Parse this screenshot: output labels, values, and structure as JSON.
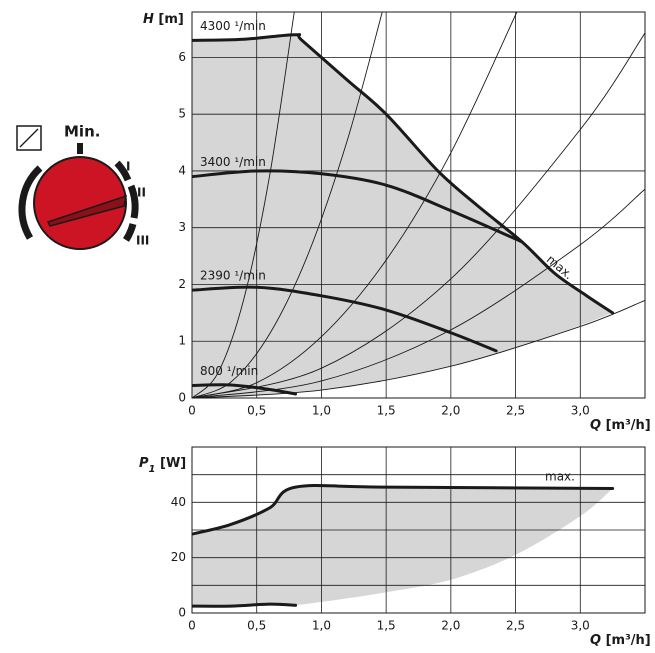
{
  "dial": {
    "min_label": "Min.",
    "positions": [
      "I",
      "II",
      "III"
    ]
  },
  "chart_data": [
    {
      "type": "line",
      "y_symbol": "H",
      "y_unit": "[m]",
      "x_symbol": "Q",
      "x_unit": "[m³/h]",
      "xlim": [
        0,
        3.5
      ],
      "xticks": [
        0,
        {
          "value": 0.5,
          "label": "0,5"
        },
        {
          "value": 1.0,
          "label": "1,0"
        },
        {
          "value": 1.5,
          "label": "1,5"
        },
        {
          "value": 2.0,
          "label": "2,0"
        },
        {
          "value": 2.5,
          "label": "2,5"
        },
        {
          "value": 3.0,
          "label": "3,0"
        }
      ],
      "ylim": [
        0,
        6.8
      ],
      "yticks": [
        0,
        1,
        2,
        3,
        4,
        5,
        6
      ],
      "grid": true,
      "shade_color": "#d6d6d6",
      "series": [
        {
          "name": "4300 ¹/min",
          "color": "#1a1a1a",
          "x": [
            0,
            0.4,
            0.8,
            0.85,
            1.2,
            1.5,
            1.9,
            2.2,
            2.55,
            2.8,
            3.05,
            3.25
          ],
          "values": [
            6.3,
            6.32,
            6.4,
            6.3,
            5.6,
            5.0,
            4.0,
            3.4,
            2.75,
            2.2,
            1.8,
            1.5
          ]
        },
        {
          "name": "3400 ¹/min",
          "color": "#1a1a1a",
          "x": [
            0,
            0.5,
            1.0,
            1.5,
            2.0,
            2.55
          ],
          "values": [
            3.9,
            4.0,
            3.95,
            3.75,
            3.3,
            2.75
          ]
        },
        {
          "name": "2390 ¹/min",
          "color": "#1a1a1a",
          "x": [
            0,
            0.5,
            1.0,
            1.5,
            2.0,
            2.35
          ],
          "values": [
            1.9,
            1.95,
            1.8,
            1.55,
            1.15,
            0.83
          ]
        },
        {
          "name": "800 ¹/min",
          "color": "#1a1a1a",
          "x": [
            0,
            0.3,
            0.6,
            0.8
          ],
          "values": [
            0.22,
            0.23,
            0.15,
            0.07
          ]
        }
      ],
      "system_curves": [
        {
          "x": [
            0,
            0.2,
            0.4,
            0.6,
            0.79
          ],
          "values": [
            0,
            0.44,
            1.74,
            3.92,
            6.8
          ]
        },
        {
          "x": [
            0,
            0.3,
            0.6,
            0.9,
            1.2,
            1.47
          ],
          "values": [
            0,
            0.28,
            1.13,
            2.55,
            4.54,
            6.8
          ]
        },
        {
          "x": [
            0,
            0.5,
            1,
            1.5,
            2,
            2.51
          ],
          "values": [
            0,
            0.27,
            1.08,
            2.43,
            4.32,
            6.8
          ]
        },
        {
          "x": [
            0,
            1,
            2,
            3,
            3.5
          ],
          "values": [
            0,
            0.525,
            2.1,
            4.73,
            6.43
          ]
        },
        {
          "x": [
            0,
            1,
            2,
            3,
            3.5
          ],
          "values": [
            0,
            0.3,
            1.2,
            2.7,
            3.68
          ]
        },
        {
          "x": [
            0,
            1,
            2,
            3,
            3.5
          ],
          "values": [
            0,
            0.14,
            0.56,
            1.26,
            1.72
          ]
        }
      ],
      "shade_lower": {
        "x": [
          0,
          0.5,
          1,
          1.5,
          2,
          2.5,
          3,
          3.25
        ],
        "values": [
          0,
          0.035,
          0.14,
          0.32,
          0.57,
          0.89,
          1.28,
          1.5
        ]
      },
      "annotation": "max."
    },
    {
      "type": "line",
      "y_symbol": "P",
      "y_sub": "1",
      "y_unit": "[W]",
      "x_symbol": "Q",
      "x_unit": "[m³/h]",
      "xlim": [
        0,
        3.5
      ],
      "xticks": [
        0,
        {
          "value": 0.5,
          "label": "0,5"
        },
        {
          "value": 1.0,
          "label": "1,0"
        },
        {
          "value": 1.5,
          "label": "1,5"
        },
        {
          "value": 2.0,
          "label": "2,0"
        },
        {
          "value": 2.5,
          "label": "2,5"
        },
        {
          "value": 3.0,
          "label": "3,0"
        }
      ],
      "ylim": [
        0,
        60
      ],
      "yticks": [
        0,
        20,
        40
      ],
      "ygrid": [
        10,
        20,
        30,
        40,
        50
      ],
      "grid": true,
      "shade_color": "#d6d6d6",
      "series": [
        {
          "name": "max.",
          "color": "#1a1a1a",
          "x": [
            0,
            0.3,
            0.6,
            0.8,
            1.5,
            3.25
          ],
          "values": [
            28.5,
            32,
            38,
            45.5,
            45.5,
            45
          ]
        },
        {
          "color": "#1a1a1a",
          "x": [
            0,
            0.3,
            0.6,
            0.8
          ],
          "values": [
            2.5,
            2.5,
            3.2,
            2.8
          ]
        }
      ],
      "shade_lower": {
        "x": [
          0.8,
          1.0,
          1.5,
          2.0,
          2.5,
          3.0,
          3.25
        ],
        "values": [
          2.8,
          4,
          7.5,
          12,
          21,
          35,
          45
        ]
      }
    }
  ]
}
